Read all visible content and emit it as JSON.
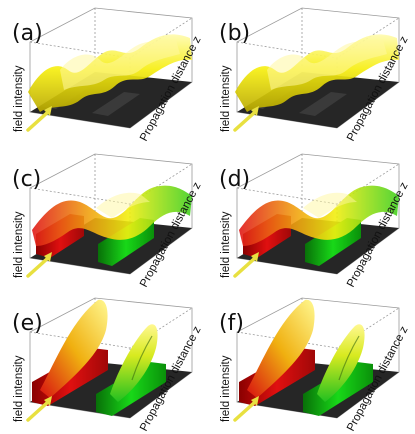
{
  "panels": [
    {
      "tag": "(a)",
      "yaxis": "field intensity",
      "zaxis": "Propagation distance z",
      "variant": "yellow-waves"
    },
    {
      "tag": "(b)",
      "yaxis": "field intensity",
      "zaxis": "Propagation distance z",
      "variant": "yellow-waves"
    },
    {
      "tag": "(c)",
      "yaxis": "field intensity",
      "zaxis": "Propagation distance z",
      "variant": "red-green-waves"
    },
    {
      "tag": "(d)",
      "yaxis": "field intensity",
      "zaxis": "Propagation distance z",
      "variant": "red-green-waves"
    },
    {
      "tag": "(e)",
      "yaxis": "field intensity",
      "zaxis": "Propagation distance z",
      "variant": "red-green-ridges"
    },
    {
      "tag": "(f)",
      "yaxis": "field intensity",
      "zaxis": "Propagation distance z",
      "variant": "red-green-ridges"
    }
  ],
  "colors": {
    "field_yellow": "#f6f000",
    "waveguide_red": "#e01010",
    "waveguide_green": "#10d010",
    "floor_dark": "#262626",
    "arrow_yellow": "#e8e040",
    "box_line": "#9a9a9a"
  }
}
